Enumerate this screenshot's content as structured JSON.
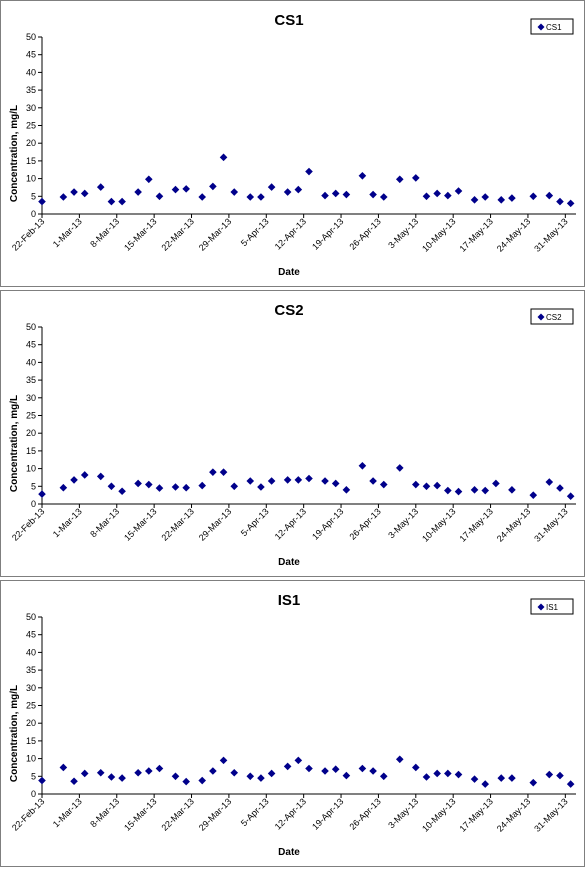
{
  "chart_data": [
    {
      "type": "scatter",
      "title": "CS1",
      "xlabel": "Date",
      "ylabel": "Concentration, mg/L",
      "ylim": [
        0,
        50
      ],
      "yticks": [
        0,
        5,
        10,
        15,
        20,
        25,
        30,
        35,
        40,
        45,
        50
      ],
      "xlim": [
        "2013-02-22",
        "2013-06-02"
      ],
      "xtick_labels": [
        "22-Feb-13",
        "1-Mar-13",
        "8-Mar-13",
        "15-Mar-13",
        "22-Mar-13",
        "29-Mar-13",
        "5-Apr-13",
        "12-Apr-13",
        "19-Apr-13",
        "26-Apr-13",
        "3-May-13",
        "10-May-13",
        "17-May-13",
        "24-May-13",
        "31-May-13"
      ],
      "legend_position": "top-right",
      "grid": false,
      "series": [
        {
          "name": "CS1",
          "color": "#00008b",
          "marker": "diamond",
          "points": [
            [
              "2013-02-22",
              3.5
            ],
            [
              "2013-02-26",
              4.8
            ],
            [
              "2013-02-28",
              6.2
            ],
            [
              "2013-03-02",
              5.8
            ],
            [
              "2013-03-05",
              7.6
            ],
            [
              "2013-03-07",
              3.5
            ],
            [
              "2013-03-09",
              3.5
            ],
            [
              "2013-03-12",
              6.2
            ],
            [
              "2013-03-14",
              9.8
            ],
            [
              "2013-03-16",
              5.0
            ],
            [
              "2013-03-19",
              6.9
            ],
            [
              "2013-03-21",
              7.1
            ],
            [
              "2013-03-24",
              4.8
            ],
            [
              "2013-03-26",
              7.8
            ],
            [
              "2013-03-28",
              16.0
            ],
            [
              "2013-03-30",
              6.2
            ],
            [
              "2013-04-02",
              4.8
            ],
            [
              "2013-04-04",
              4.8
            ],
            [
              "2013-04-06",
              7.6
            ],
            [
              "2013-04-09",
              6.2
            ],
            [
              "2013-04-11",
              6.9
            ],
            [
              "2013-04-13",
              12.0
            ],
            [
              "2013-04-16",
              5.2
            ],
            [
              "2013-04-18",
              5.8
            ],
            [
              "2013-04-20",
              5.5
            ],
            [
              "2013-04-23",
              10.8
            ],
            [
              "2013-04-25",
              5.5
            ],
            [
              "2013-04-27",
              4.8
            ],
            [
              "2013-04-30",
              9.8
            ],
            [
              "2013-05-03",
              10.2
            ],
            [
              "2013-05-05",
              5.0
            ],
            [
              "2013-05-07",
              5.8
            ],
            [
              "2013-05-09",
              5.2
            ],
            [
              "2013-05-11",
              6.5
            ],
            [
              "2013-05-14",
              4.0
            ],
            [
              "2013-05-16",
              4.8
            ],
            [
              "2013-05-19",
              4.0
            ],
            [
              "2013-05-21",
              4.5
            ],
            [
              "2013-05-25",
              5.0
            ],
            [
              "2013-05-28",
              5.2
            ],
            [
              "2013-05-30",
              3.5
            ],
            [
              "2013-06-01",
              3.0
            ]
          ]
        }
      ]
    },
    {
      "type": "scatter",
      "title": "CS2",
      "xlabel": "Date",
      "ylabel": "Concentration, mg/L",
      "ylim": [
        0,
        50
      ],
      "yticks": [
        0,
        5,
        10,
        15,
        20,
        25,
        30,
        35,
        40,
        45,
        50
      ],
      "xlim": [
        "2013-02-22",
        "2013-06-02"
      ],
      "xtick_labels": [
        "22-Feb-13",
        "1-Mar-13",
        "8-Mar-13",
        "15-Mar-13",
        "22-Mar-13",
        "29-Mar-13",
        "5-Apr-13",
        "12-Apr-13",
        "19-Apr-13",
        "26-Apr-13",
        "3-May-13",
        "10-May-13",
        "17-May-13",
        "24-May-13",
        "31-May-13"
      ],
      "legend_position": "top-right",
      "grid": false,
      "series": [
        {
          "name": "CS2",
          "color": "#00008b",
          "marker": "diamond",
          "points": [
            [
              "2013-02-22",
              2.8
            ],
            [
              "2013-02-26",
              4.6
            ],
            [
              "2013-02-28",
              6.8
            ],
            [
              "2013-03-02",
              8.2
            ],
            [
              "2013-03-05",
              7.8
            ],
            [
              "2013-03-07",
              5.0
            ],
            [
              "2013-03-09",
              3.6
            ],
            [
              "2013-03-12",
              5.8
            ],
            [
              "2013-03-14",
              5.5
            ],
            [
              "2013-03-16",
              4.5
            ],
            [
              "2013-03-19",
              4.8
            ],
            [
              "2013-03-21",
              4.6
            ],
            [
              "2013-03-24",
              5.2
            ],
            [
              "2013-03-26",
              9.0
            ],
            [
              "2013-03-28",
              9.0
            ],
            [
              "2013-03-30",
              5.0
            ],
            [
              "2013-04-02",
              6.5
            ],
            [
              "2013-04-04",
              4.8
            ],
            [
              "2013-04-06",
              6.5
            ],
            [
              "2013-04-09",
              6.8
            ],
            [
              "2013-04-11",
              6.8
            ],
            [
              "2013-04-13",
              7.2
            ],
            [
              "2013-04-16",
              6.5
            ],
            [
              "2013-04-18",
              5.8
            ],
            [
              "2013-04-20",
              4.0
            ],
            [
              "2013-04-23",
              10.8
            ],
            [
              "2013-04-25",
              6.5
            ],
            [
              "2013-04-27",
              5.5
            ],
            [
              "2013-04-30",
              10.2
            ],
            [
              "2013-05-03",
              5.5
            ],
            [
              "2013-05-05",
              5.0
            ],
            [
              "2013-05-07",
              5.2
            ],
            [
              "2013-05-09",
              3.8
            ],
            [
              "2013-05-11",
              3.5
            ],
            [
              "2013-05-14",
              4.0
            ],
            [
              "2013-05-16",
              3.8
            ],
            [
              "2013-05-18",
              5.8
            ],
            [
              "2013-05-21",
              4.0
            ],
            [
              "2013-05-25",
              2.5
            ],
            [
              "2013-05-28",
              6.2
            ],
            [
              "2013-05-30",
              4.5
            ],
            [
              "2013-06-01",
              2.2
            ]
          ]
        }
      ]
    },
    {
      "type": "scatter",
      "title": "IS1",
      "xlabel": "Date",
      "ylabel": "Concentration, mg/L",
      "ylim": [
        0,
        50
      ],
      "yticks": [
        0,
        5,
        10,
        15,
        20,
        25,
        30,
        35,
        40,
        45,
        50
      ],
      "xlim": [
        "2013-02-22",
        "2013-06-02"
      ],
      "xtick_labels": [
        "22-Feb-13",
        "1-Mar-13",
        "8-Mar-13",
        "15-Mar-13",
        "22-Mar-13",
        "29-Mar-13",
        "5-Apr-13",
        "12-Apr-13",
        "19-Apr-13",
        "26-Apr-13",
        "3-May-13",
        "10-May-13",
        "17-May-13",
        "24-May-13",
        "31-May-13"
      ],
      "legend_position": "top-right",
      "grid": false,
      "series": [
        {
          "name": "IS1",
          "color": "#00008b",
          "marker": "diamond",
          "points": [
            [
              "2013-02-22",
              3.8
            ],
            [
              "2013-02-26",
              7.5
            ],
            [
              "2013-02-28",
              3.6
            ],
            [
              "2013-03-02",
              5.8
            ],
            [
              "2013-03-05",
              6.0
            ],
            [
              "2013-03-07",
              4.8
            ],
            [
              "2013-03-09",
              4.5
            ],
            [
              "2013-03-12",
              6.0
            ],
            [
              "2013-03-14",
              6.5
            ],
            [
              "2013-03-16",
              7.2
            ],
            [
              "2013-03-19",
              5.0
            ],
            [
              "2013-03-21",
              3.5
            ],
            [
              "2013-03-24",
              3.8
            ],
            [
              "2013-03-26",
              6.5
            ],
            [
              "2013-03-28",
              9.5
            ],
            [
              "2013-03-30",
              6.0
            ],
            [
              "2013-04-02",
              5.0
            ],
            [
              "2013-04-04",
              4.5
            ],
            [
              "2013-04-06",
              5.8
            ],
            [
              "2013-04-09",
              7.8
            ],
            [
              "2013-04-11",
              9.5
            ],
            [
              "2013-04-13",
              7.2
            ],
            [
              "2013-04-16",
              6.5
            ],
            [
              "2013-04-18",
              7.0
            ],
            [
              "2013-04-20",
              5.2
            ],
            [
              "2013-04-23",
              7.2
            ],
            [
              "2013-04-25",
              6.5
            ],
            [
              "2013-04-27",
              5.0
            ],
            [
              "2013-04-30",
              9.8
            ],
            [
              "2013-05-03",
              7.5
            ],
            [
              "2013-05-05",
              4.8
            ],
            [
              "2013-05-07",
              5.8
            ],
            [
              "2013-05-09",
              5.8
            ],
            [
              "2013-05-11",
              5.5
            ],
            [
              "2013-05-14",
              4.2
            ],
            [
              "2013-05-16",
              2.8
            ],
            [
              "2013-05-19",
              4.5
            ],
            [
              "2013-05-21",
              4.5
            ],
            [
              "2013-05-25",
              3.2
            ],
            [
              "2013-05-28",
              5.5
            ],
            [
              "2013-05-30",
              5.2
            ],
            [
              "2013-06-01",
              2.8
            ]
          ]
        }
      ]
    }
  ]
}
